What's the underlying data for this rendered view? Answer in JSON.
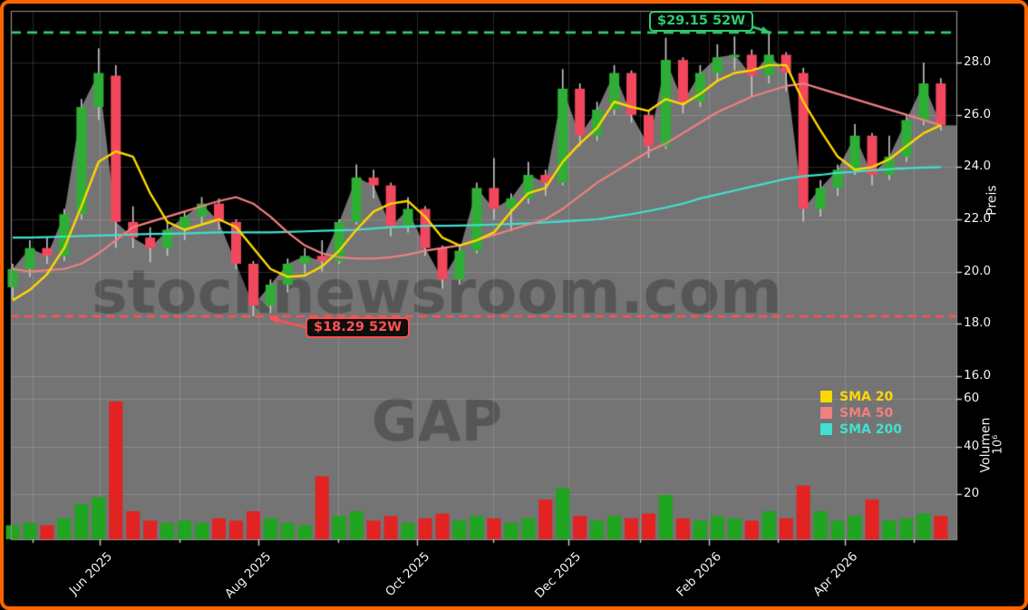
{
  "chart": {
    "watermark_site": "stocknewsroom.com",
    "watermark_symbol": "GAP",
    "annotations": {
      "high": {
        "label": "$29.15 52W",
        "value": 29.15
      },
      "low": {
        "label": "$18.29 52W",
        "value": 18.29
      }
    },
    "price_axis": {
      "label": "Preis",
      "ticks": [
        "28.0",
        "26.0",
        "24.0",
        "22.0",
        "20.0",
        "18.0",
        "16.0"
      ],
      "tick_values": [
        28,
        26,
        24,
        22,
        20,
        18,
        16
      ]
    },
    "volume_axis": {
      "label": "Volumen",
      "unit": "10⁶",
      "ticks": [
        "60",
        "40",
        "20"
      ],
      "tick_values": [
        60,
        40,
        20
      ]
    },
    "x_axis": {
      "ticks": [
        "Jun 2025",
        "Aug 2025",
        "Oct 2025",
        "Dec 2025",
        "Feb 2026",
        "Apr 2026"
      ]
    },
    "legend": [
      {
        "name": "SMA 20",
        "color": "#ffd700"
      },
      {
        "name": "SMA 50",
        "color": "#f08080"
      },
      {
        "name": "SMA 200",
        "color": "#40e0d0"
      }
    ],
    "colors": {
      "frame": "#ff6400",
      "background": "#000000",
      "area_fill": "#747474",
      "candle_up": "#2eae34",
      "candle_down": "#f1485d",
      "wick": "#c8c8c8",
      "volume_up": "#1fa51f",
      "volume_down": "#e32222",
      "sma20": "#ffd700",
      "sma50": "#f08080",
      "sma200": "#40e0d0",
      "high_line": "#2ecc71",
      "low_line": "#ff5252",
      "grid": "rgba(255,255,255,0.16)",
      "spine": "#909090"
    }
  },
  "chart_data": {
    "type": "candlestick",
    "subtype": "weekly OHLC with volume panel and SMA overlays",
    "symbol_watermark": "GAP",
    "high_52w": 29.15,
    "low_52w": 18.29,
    "ylim_price": [
      16,
      29.5
    ],
    "ylim_volume": [
      0,
      65
    ],
    "legend_position": "lower right",
    "grid": true,
    "dates": [
      "2025-04-28",
      "2025-05-05",
      "2025-05-12",
      "2025-05-19",
      "2025-05-26",
      "2025-06-02",
      "2025-06-09",
      "2025-06-16",
      "2025-06-23",
      "2025-06-30",
      "2025-07-07",
      "2025-07-14",
      "2025-07-21",
      "2025-07-28",
      "2025-08-04",
      "2025-08-11",
      "2025-08-18",
      "2025-08-25",
      "2025-09-01",
      "2025-09-08",
      "2025-09-15",
      "2025-09-22",
      "2025-09-29",
      "2025-10-06",
      "2025-10-13",
      "2025-10-20",
      "2025-10-27",
      "2025-11-03",
      "2025-11-10",
      "2025-11-17",
      "2025-11-24",
      "2025-12-01",
      "2025-12-08",
      "2025-12-15",
      "2025-12-22",
      "2025-12-29",
      "2026-01-05",
      "2026-01-12",
      "2026-01-19",
      "2026-01-26",
      "2026-02-02",
      "2026-02-09",
      "2026-02-16",
      "2026-02-23",
      "2026-03-02",
      "2026-03-09",
      "2026-03-16",
      "2026-03-23",
      "2026-03-30",
      "2026-04-06",
      "2026-04-13",
      "2026-04-20",
      "2026-04-27",
      "2026-05-04",
      "2026-05-11"
    ],
    "ohlc": [
      [
        19.4,
        20.3,
        18.95,
        20.1
      ],
      [
        20.1,
        21.2,
        19.8,
        20.9
      ],
      [
        20.9,
        21.3,
        20.3,
        20.6
      ],
      [
        20.6,
        22.4,
        20.4,
        22.2
      ],
      [
        22.2,
        26.6,
        22.0,
        26.3
      ],
      [
        26.3,
        28.55,
        25.8,
        27.6
      ],
      [
        27.5,
        27.9,
        20.9,
        21.9
      ],
      [
        21.9,
        22.5,
        20.9,
        21.3
      ],
      [
        21.3,
        21.7,
        20.35,
        20.9
      ],
      [
        20.9,
        21.9,
        20.6,
        21.6
      ],
      [
        21.6,
        22.3,
        21.2,
        22.1
      ],
      [
        22.1,
        22.85,
        21.8,
        22.6
      ],
      [
        22.6,
        22.8,
        21.6,
        21.9
      ],
      [
        21.9,
        22.0,
        20.1,
        20.3
      ],
      [
        20.3,
        20.4,
        18.29,
        18.7
      ],
      [
        18.7,
        19.7,
        18.4,
        19.5
      ],
      [
        19.5,
        20.5,
        19.2,
        20.3
      ],
      [
        20.3,
        20.9,
        19.9,
        20.6
      ],
      [
        20.6,
        21.2,
        20.0,
        20.4
      ],
      [
        20.4,
        22.0,
        20.3,
        21.9
      ],
      [
        21.9,
        24.1,
        21.8,
        23.6
      ],
      [
        23.6,
        23.9,
        22.8,
        23.3
      ],
      [
        23.3,
        23.4,
        21.35,
        21.7
      ],
      [
        21.7,
        22.85,
        21.5,
        22.4
      ],
      [
        22.4,
        22.5,
        20.6,
        20.9
      ],
      [
        20.9,
        21.0,
        19.35,
        19.7
      ],
      [
        19.7,
        21.0,
        19.5,
        20.8
      ],
      [
        20.8,
        23.4,
        20.7,
        23.2
      ],
      [
        23.2,
        24.35,
        22.0,
        22.4
      ],
      [
        22.4,
        23.0,
        21.55,
        22.8
      ],
      [
        22.8,
        24.2,
        22.6,
        23.7
      ],
      [
        23.7,
        23.9,
        22.9,
        23.4
      ],
      [
        23.4,
        27.75,
        23.3,
        27.0
      ],
      [
        27.0,
        27.2,
        24.8,
        25.2
      ],
      [
        25.2,
        26.5,
        25.0,
        26.2
      ],
      [
        26.2,
        27.9,
        26.0,
        27.6
      ],
      [
        27.6,
        27.7,
        25.7,
        26.0
      ],
      [
        26.0,
        26.2,
        24.35,
        24.8
      ],
      [
        24.8,
        28.95,
        24.7,
        28.1
      ],
      [
        28.1,
        28.2,
        26.05,
        26.5
      ],
      [
        26.5,
        27.9,
        26.3,
        27.6
      ],
      [
        27.6,
        28.7,
        27.3,
        28.2
      ],
      [
        28.2,
        29.0,
        27.7,
        28.3
      ],
      [
        28.3,
        28.5,
        26.7,
        27.5
      ],
      [
        27.5,
        29.15,
        27.2,
        28.3
      ],
      [
        28.3,
        28.4,
        26.9,
        27.6
      ],
      [
        27.6,
        27.8,
        21.9,
        22.4
      ],
      [
        22.4,
        23.5,
        22.1,
        23.2
      ],
      [
        23.2,
        24.1,
        22.9,
        23.9
      ],
      [
        23.9,
        25.65,
        23.7,
        25.2
      ],
      [
        25.2,
        25.3,
        23.3,
        23.7
      ],
      [
        23.7,
        25.2,
        23.5,
        24.4
      ],
      [
        24.4,
        26.0,
        24.2,
        25.8
      ],
      [
        25.8,
        28.0,
        25.6,
        27.2
      ],
      [
        27.2,
        27.4,
        25.4,
        25.6
      ]
    ],
    "volume_millions": [
      6,
      7,
      6,
      9,
      15,
      18,
      59,
      12,
      8,
      7,
      8,
      7,
      9,
      8,
      12,
      9,
      7,
      6,
      27,
      10,
      12,
      8,
      10,
      7,
      9,
      11,
      8,
      10,
      9,
      7,
      9,
      17,
      22,
      10,
      8,
      10,
      9,
      11,
      19,
      9,
      8,
      10,
      9,
      8,
      12,
      9,
      23,
      12,
      8,
      10,
      17,
      8,
      9,
      11,
      10
    ],
    "series": [
      {
        "name": "SMA 20",
        "values": [
          18.9,
          19.3,
          19.9,
          20.9,
          22.5,
          24.2,
          24.6,
          24.4,
          23.0,
          21.9,
          21.6,
          21.8,
          22.0,
          21.7,
          20.9,
          20.1,
          19.8,
          19.85,
          20.2,
          20.8,
          21.6,
          22.3,
          22.6,
          22.7,
          22.1,
          21.3,
          21.0,
          21.2,
          21.5,
          22.3,
          23.0,
          23.2,
          24.2,
          24.9,
          25.5,
          26.5,
          26.3,
          26.15,
          26.6,
          26.4,
          26.8,
          27.3,
          27.6,
          27.7,
          27.9,
          27.9,
          26.5,
          25.4,
          24.4,
          23.9,
          24.0,
          24.3,
          24.8,
          25.3,
          25.6
        ]
      },
      {
        "name": "SMA 50",
        "values": [
          20.1,
          20.0,
          20.05,
          20.1,
          20.3,
          20.7,
          21.2,
          21.7,
          21.9,
          22.1,
          22.3,
          22.5,
          22.7,
          22.85,
          22.6,
          22.1,
          21.5,
          21.0,
          20.7,
          20.55,
          20.5,
          20.5,
          20.55,
          20.65,
          20.8,
          20.9,
          21.0,
          21.2,
          21.4,
          21.6,
          21.8,
          22.0,
          22.4,
          22.9,
          23.4,
          23.8,
          24.2,
          24.6,
          24.9,
          25.3,
          25.7,
          26.1,
          26.4,
          26.7,
          26.9,
          27.1,
          27.2,
          27.0,
          26.8,
          26.6,
          26.4,
          26.2,
          26.0,
          25.8,
          25.6
        ]
      },
      {
        "name": "SMA 200",
        "values": [
          21.3,
          21.3,
          21.32,
          21.34,
          21.36,
          21.38,
          21.4,
          21.42,
          21.44,
          21.45,
          21.46,
          21.48,
          21.5,
          21.5,
          21.5,
          21.5,
          21.52,
          21.54,
          21.56,
          21.58,
          21.6,
          21.65,
          21.7,
          21.72,
          21.75,
          21.75,
          21.76,
          21.78,
          21.8,
          21.82,
          21.85,
          21.88,
          21.92,
          21.96,
          22.0,
          22.1,
          22.2,
          22.32,
          22.45,
          22.6,
          22.8,
          22.95,
          23.1,
          23.25,
          23.4,
          23.55,
          23.65,
          23.7,
          23.78,
          23.82,
          23.88,
          23.92,
          23.95,
          23.98,
          24.0
        ]
      }
    ]
  }
}
